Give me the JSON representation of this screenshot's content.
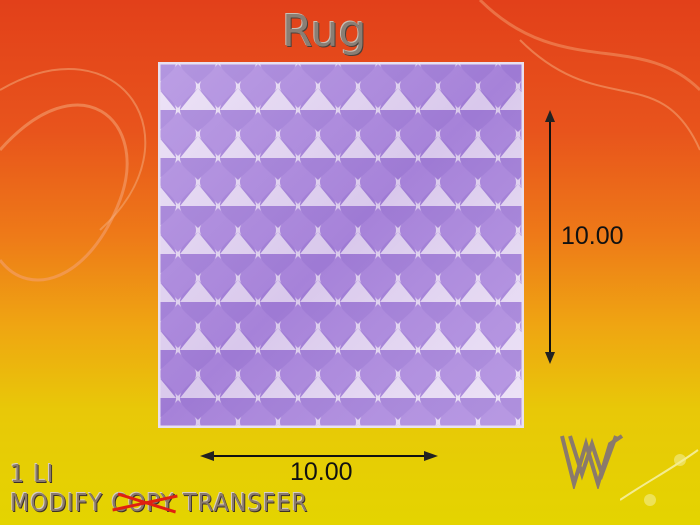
{
  "title": "Rug",
  "dimensions": {
    "height": "10.00",
    "width": "10.00"
  },
  "info": {
    "land_impact": "1 LI",
    "perm_modify": "MODIFY",
    "perm_copy": "COPY",
    "perm_transfer": "TRANSFER"
  },
  "colors": {
    "rug": "#b090e0",
    "background_top": "#e2401a",
    "background_bottom": "#e4d400",
    "strike": "#e02010"
  }
}
